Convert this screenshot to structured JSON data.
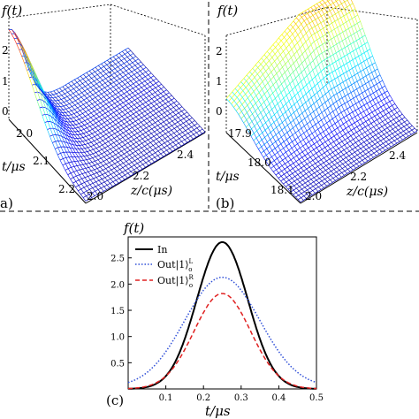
{
  "chart_data": [
    {
      "panel": "(a)",
      "type": "surface",
      "zlabel": "f(t)",
      "xlabel": "z/c(μs)",
      "ylabel": "t/μs",
      "z_ticks": [
        "0",
        "1",
        "2"
      ],
      "x_ticks": [
        "2.0",
        "2.2",
        "2.4"
      ],
      "y_ticks": [
        "2.0",
        "2.1",
        "2.2"
      ],
      "x_range": [
        2.0,
        2.5
      ],
      "y_range": [
        2.0,
        2.2
      ],
      "z_range": [
        0,
        2.6
      ],
      "surface": "pulse with peak ≈2.4 at z/c≈2.0, t≈2.0, decaying to ≈0 for z/c>2.15",
      "colormap": "jet"
    },
    {
      "panel": "(b)",
      "type": "surface",
      "zlabel": "f(t)",
      "xlabel": "z/c(μs)",
      "ylabel": "t/μs",
      "z_ticks": [
        "0",
        "1",
        "2"
      ],
      "x_ticks": [
        "2.0",
        "2.2",
        "2.4"
      ],
      "y_ticks": [
        "17.9",
        "18.0",
        "18.1"
      ],
      "x_range": [
        2.0,
        2.5
      ],
      "y_range": [
        17.9,
        18.1
      ],
      "z_range": [
        0,
        2.6
      ],
      "surface": "pulse plateau ≈1.9 at large z/c near t≈17.9, ≈0.9 near z/c≈2.0",
      "colormap": "jet"
    },
    {
      "panel": "(c)",
      "type": "line",
      "ylabel": "f(t)",
      "xlabel": "t/μs",
      "xlim": [
        0,
        0.5
      ],
      "ylim": [
        0,
        2.9
      ],
      "x_ticks": [
        0.1,
        0.2,
        0.3,
        0.4,
        0.5
      ],
      "y_ticks": [
        0.5,
        1.0,
        1.5,
        2.0,
        2.5
      ],
      "legend_position": "top-left",
      "series": [
        {
          "name": "In",
          "style": "solid",
          "color": "#000000",
          "center": 0.25,
          "peak": 2.8,
          "width": 0.068
        },
        {
          "name": "Out|1⟩o^L",
          "style": "dotted",
          "color": "#3050d8",
          "center": 0.25,
          "peak": 2.1,
          "width": 0.1
        },
        {
          "name": "Out|1⟩o^R",
          "style": "dashed",
          "color": "#e02020",
          "center": 0.25,
          "peak": 1.82,
          "width": 0.075
        }
      ]
    }
  ],
  "labels": {
    "a": "a)",
    "b": "(b)",
    "c": "(c)",
    "ft": "f(t)",
    "t_mu": "t/μs",
    "zc": "z/c(μs)",
    "legend_in": "In",
    "legend_out": "Out|1⟩",
    "legend_sub": "o",
    "legend_sup_l": "L",
    "legend_sup_r": "R"
  }
}
